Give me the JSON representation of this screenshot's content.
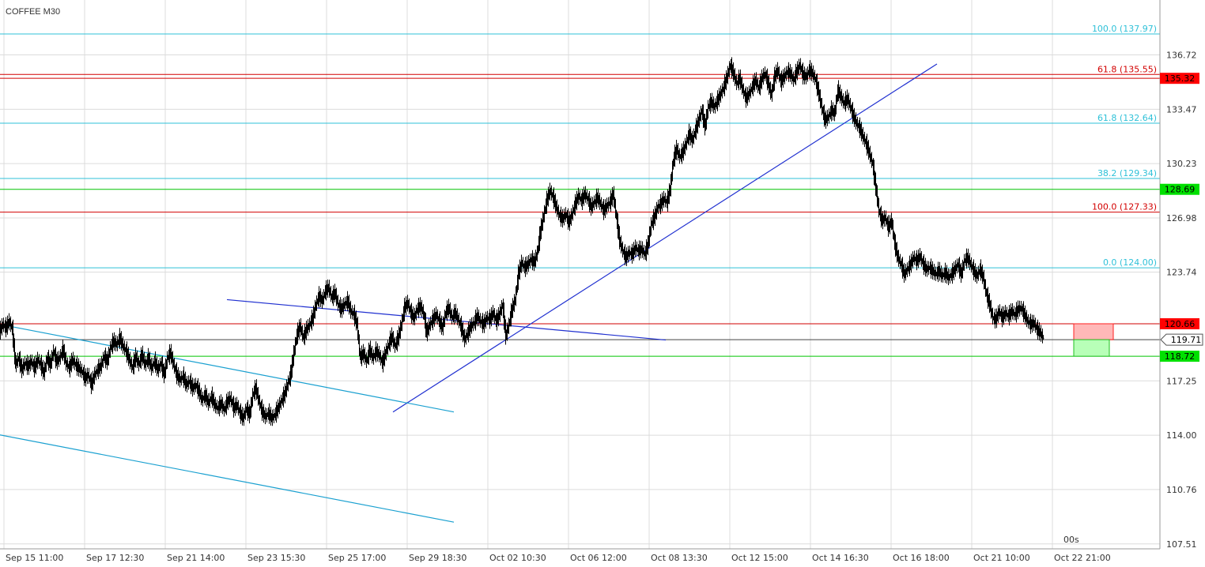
{
  "chart_data": {
    "type": "candlestick",
    "title": "COFFEE M30",
    "countdown": "00s",
    "x_ticks": [
      "Sep 15 11:00",
      "Sep 17 12:30",
      "Sep 21 14:00",
      "Sep 23 15:30",
      "Sep 25 17:00",
      "Sep 29 18:30",
      "Oct 02 10:30",
      "Oct 06 12:00",
      "Oct 08 13:30",
      "Oct 12 15:00",
      "Oct 14 16:30",
      "Oct 16 18:00",
      "Oct 21 10:00",
      "Oct 22 21:00"
    ],
    "y_ticks": [
      107.51,
      110.76,
      114.0,
      117.25,
      119.71,
      123.74,
      126.98,
      130.23,
      133.47,
      136.72
    ],
    "ylim": [
      107.51,
      136.72
    ],
    "current_price": "119.71",
    "price_path": [
      [
        0,
        120.2
      ],
      [
        4,
        120.6
      ],
      [
        8,
        120.4
      ],
      [
        12,
        120.8
      ],
      [
        16,
        120.3
      ],
      [
        20,
        118.2
      ],
      [
        24,
        118.6
      ],
      [
        28,
        117.9
      ],
      [
        32,
        118.3
      ],
      [
        36,
        118.1
      ],
      [
        40,
        118.4
      ],
      [
        44,
        118.0
      ],
      [
        48,
        118.5
      ],
      [
        52,
        118.2
      ],
      [
        56,
        117.7
      ],
      [
        60,
        118.6
      ],
      [
        64,
        118.2
      ],
      [
        68,
        119.0
      ],
      [
        72,
        118.4
      ],
      [
        76,
        118.6
      ],
      [
        80,
        119.1
      ],
      [
        84,
        118.3
      ],
      [
        88,
        118.0
      ],
      [
        92,
        118.5
      ],
      [
        96,
        118.2
      ],
      [
        100,
        118.0
      ],
      [
        104,
        117.8
      ],
      [
        108,
        117.4
      ],
      [
        112,
        117.6
      ],
      [
        116,
        117.0
      ],
      [
        120,
        117.6
      ],
      [
        124,
        117.9
      ],
      [
        128,
        118.1
      ],
      [
        132,
        118.7
      ],
      [
        136,
        118.4
      ],
      [
        140,
        119.2
      ],
      [
        144,
        119.6
      ],
      [
        148,
        119.4
      ],
      [
        152,
        119.8
      ],
      [
        156,
        119.3
      ],
      [
        160,
        119.0
      ],
      [
        164,
        118.5
      ],
      [
        168,
        118.0
      ],
      [
        172,
        118.7
      ],
      [
        176,
        118.2
      ],
      [
        180,
        118.8
      ],
      [
        184,
        118.2
      ],
      [
        188,
        118.6
      ],
      [
        192,
        118.0
      ],
      [
        196,
        118.4
      ],
      [
        200,
        117.9
      ],
      [
        204,
        118.3
      ],
      [
        208,
        117.6
      ],
      [
        212,
        118.6
      ],
      [
        216,
        118.9
      ],
      [
        220,
        118.2
      ],
      [
        224,
        117.6
      ],
      [
        228,
        117.3
      ],
      [
        232,
        117.5
      ],
      [
        236,
        117.0
      ],
      [
        240,
        117.2
      ],
      [
        244,
        116.8
      ],
      [
        248,
        117.0
      ],
      [
        252,
        116.6
      ],
      [
        256,
        116.1
      ],
      [
        260,
        116.4
      ],
      [
        264,
        115.9
      ],
      [
        268,
        116.3
      ],
      [
        272,
        115.8
      ],
      [
        276,
        115.6
      ],
      [
        280,
        115.9
      ],
      [
        284,
        115.5
      ],
      [
        288,
        116.0
      ],
      [
        292,
        116.2
      ],
      [
        296,
        115.6
      ],
      [
        300,
        115.8
      ],
      [
        304,
        115.3
      ],
      [
        308,
        115.0
      ],
      [
        312,
        115.6
      ],
      [
        316,
        115.2
      ],
      [
        320,
        116.4
      ],
      [
        324,
        116.8
      ],
      [
        328,
        116.0
      ],
      [
        332,
        115.4
      ],
      [
        336,
        115.1
      ],
      [
        340,
        115.3
      ],
      [
        344,
        115.0
      ],
      [
        348,
        115.2
      ],
      [
        352,
        115.6
      ],
      [
        356,
        116.0
      ],
      [
        360,
        116.4
      ],
      [
        364,
        117.0
      ],
      [
        368,
        117.6
      ],
      [
        372,
        118.9
      ],
      [
        376,
        120.0
      ],
      [
        380,
        120.5
      ],
      [
        384,
        119.8
      ],
      [
        388,
        120.3
      ],
      [
        392,
        120.6
      ],
      [
        396,
        121.0
      ],
      [
        400,
        121.8
      ],
      [
        404,
        122.3
      ],
      [
        408,
        122.0
      ],
      [
        412,
        122.6
      ],
      [
        416,
        122.8
      ],
      [
        420,
        122.2
      ],
      [
        424,
        122.5
      ],
      [
        428,
        121.8
      ],
      [
        432,
        121.5
      ],
      [
        436,
        121.8
      ],
      [
        440,
        122.0
      ],
      [
        444,
        121.4
      ],
      [
        448,
        121.2
      ],
      [
        452,
        120.6
      ],
      [
        456,
        118.6
      ],
      [
        460,
        118.9
      ],
      [
        464,
        118.4
      ],
      [
        468,
        119.1
      ],
      [
        472,
        118.6
      ],
      [
        476,
        119.0
      ],
      [
        480,
        118.8
      ],
      [
        484,
        118.3
      ],
      [
        488,
        118.9
      ],
      [
        492,
        119.4
      ],
      [
        496,
        119.9
      ],
      [
        500,
        119.3
      ],
      [
        504,
        119.8
      ],
      [
        508,
        120.6
      ],
      [
        512,
        121.6
      ],
      [
        516,
        121.9
      ],
      [
        520,
        121.3
      ],
      [
        524,
        121.0
      ],
      [
        528,
        121.5
      ],
      [
        532,
        121.7
      ],
      [
        536,
        121.3
      ],
      [
        540,
        120.1
      ],
      [
        544,
        120.6
      ],
      [
        548,
        120.9
      ],
      [
        552,
        121.2
      ],
      [
        556,
        120.8
      ],
      [
        560,
        120.4
      ],
      [
        564,
        121.3
      ],
      [
        568,
        121.6
      ],
      [
        572,
        121.0
      ],
      [
        576,
        121.3
      ],
      [
        580,
        120.9
      ],
      [
        584,
        120.4
      ],
      [
        588,
        119.7
      ],
      [
        592,
        120.1
      ],
      [
        596,
        120.5
      ],
      [
        600,
        120.7
      ],
      [
        604,
        121.1
      ],
      [
        608,
        120.8
      ],
      [
        612,
        120.6
      ],
      [
        616,
        121.0
      ],
      [
        620,
        120.9
      ],
      [
        624,
        121.3
      ],
      [
        628,
        120.8
      ],
      [
        632,
        121.2
      ],
      [
        636,
        121.8
      ],
      [
        640,
        119.9
      ],
      [
        644,
        120.6
      ],
      [
        648,
        121.5
      ],
      [
        652,
        122.1
      ],
      [
        656,
        123.6
      ],
      [
        660,
        124.3
      ],
      [
        664,
        124.0
      ],
      [
        668,
        124.2
      ],
      [
        672,
        124.5
      ],
      [
        676,
        124.3
      ],
      [
        680,
        124.9
      ],
      [
        684,
        126.2
      ],
      [
        688,
        127.1
      ],
      [
        692,
        128.0
      ],
      [
        696,
        128.6
      ],
      [
        700,
        128.2
      ],
      [
        704,
        127.6
      ],
      [
        708,
        127.1
      ],
      [
        712,
        126.9
      ],
      [
        716,
        127.2
      ],
      [
        720,
        126.7
      ],
      [
        724,
        127.2
      ],
      [
        728,
        127.8
      ],
      [
        732,
        128.3
      ],
      [
        736,
        128.0
      ],
      [
        740,
        128.4
      ],
      [
        744,
        128.1
      ],
      [
        748,
        127.6
      ],
      [
        752,
        127.9
      ],
      [
        756,
        128.2
      ],
      [
        760,
        127.8
      ],
      [
        764,
        127.4
      ],
      [
        768,
        127.7
      ],
      [
        772,
        127.9
      ],
      [
        776,
        128.4
      ],
      [
        780,
        127.0
      ],
      [
        784,
        125.6
      ],
      [
        788,
        125.0
      ],
      [
        792,
        124.6
      ],
      [
        796,
        124.9
      ],
      [
        800,
        124.8
      ],
      [
        804,
        125.2
      ],
      [
        808,
        125.0
      ],
      [
        812,
        125.1
      ],
      [
        816,
        124.8
      ],
      [
        820,
        125.4
      ],
      [
        824,
        126.6
      ],
      [
        828,
        127.0
      ],
      [
        832,
        127.6
      ],
      [
        836,
        127.8
      ],
      [
        840,
        128.1
      ],
      [
        844,
        127.9
      ],
      [
        848,
        128.7
      ],
      [
        852,
        130.4
      ],
      [
        856,
        131.1
      ],
      [
        860,
        130.6
      ],
      [
        864,
        130.9
      ],
      [
        868,
        131.4
      ],
      [
        872,
        132.0
      ],
      [
        876,
        131.6
      ],
      [
        880,
        132.2
      ],
      [
        884,
        132.8
      ],
      [
        888,
        133.4
      ],
      [
        892,
        132.4
      ],
      [
        896,
        133.6
      ],
      [
        900,
        133.9
      ],
      [
        904,
        133.6
      ],
      [
        908,
        134.0
      ],
      [
        912,
        134.4
      ],
      [
        916,
        134.8
      ],
      [
        920,
        135.4
      ],
      [
        924,
        136.1
      ],
      [
        928,
        135.6
      ],
      [
        932,
        135.0
      ],
      [
        936,
        135.3
      ],
      [
        940,
        134.6
      ],
      [
        944,
        134.1
      ],
      [
        948,
        134.4
      ],
      [
        952,
        134.8
      ],
      [
        956,
        135.2
      ],
      [
        960,
        134.7
      ],
      [
        964,
        135.3
      ],
      [
        968,
        135.6
      ],
      [
        972,
        135.0
      ],
      [
        976,
        134.3
      ],
      [
        980,
        135.4
      ],
      [
        984,
        135.8
      ],
      [
        988,
        135.1
      ],
      [
        992,
        135.4
      ],
      [
        996,
        135.7
      ],
      [
        1000,
        135.6
      ],
      [
        1004,
        135.2
      ],
      [
        1008,
        135.7
      ],
      [
        1012,
        136.1
      ],
      [
        1016,
        135.5
      ],
      [
        1020,
        135.4
      ],
      [
        1024,
        135.8
      ],
      [
        1028,
        135.6
      ],
      [
        1032,
        135.2
      ],
      [
        1036,
        134.4
      ],
      [
        1040,
        133.5
      ],
      [
        1044,
        132.8
      ],
      [
        1048,
        133.0
      ],
      [
        1052,
        133.4
      ],
      [
        1056,
        133.2
      ],
      [
        1060,
        134.6
      ],
      [
        1064,
        134.2
      ],
      [
        1068,
        133.8
      ],
      [
        1072,
        134.1
      ],
      [
        1076,
        133.6
      ],
      [
        1080,
        133.0
      ],
      [
        1084,
        132.6
      ],
      [
        1088,
        132.3
      ],
      [
        1092,
        131.8
      ],
      [
        1096,
        131.4
      ],
      [
        1100,
        130.8
      ],
      [
        1104,
        130.2
      ],
      [
        1108,
        128.8
      ],
      [
        1112,
        127.4
      ],
      [
        1116,
        126.8
      ],
      [
        1120,
        127.0
      ],
      [
        1124,
        126.4
      ],
      [
        1128,
        126.8
      ],
      [
        1132,
        125.4
      ],
      [
        1136,
        124.6
      ],
      [
        1140,
        124.2
      ],
      [
        1144,
        123.6
      ],
      [
        1148,
        123.9
      ],
      [
        1152,
        124.2
      ],
      [
        1156,
        124.6
      ],
      [
        1160,
        124.4
      ],
      [
        1164,
        124.7
      ],
      [
        1168,
        124.2
      ],
      [
        1172,
        123.9
      ],
      [
        1176,
        124.0
      ],
      [
        1180,
        123.8
      ],
      [
        1184,
        123.6
      ],
      [
        1188,
        123.8
      ],
      [
        1192,
        123.5
      ],
      [
        1196,
        123.7
      ],
      [
        1200,
        123.4
      ],
      [
        1204,
        123.6
      ],
      [
        1208,
        123.9
      ],
      [
        1212,
        124.2
      ],
      [
        1216,
        123.6
      ],
      [
        1220,
        124.4
      ],
      [
        1224,
        124.6
      ],
      [
        1228,
        124.2
      ],
      [
        1232,
        123.8
      ],
      [
        1236,
        123.5
      ],
      [
        1240,
        123.9
      ],
      [
        1244,
        123.4
      ],
      [
        1248,
        122.4
      ],
      [
        1252,
        121.8
      ],
      [
        1256,
        121.0
      ],
      [
        1260,
        120.9
      ],
      [
        1264,
        121.4
      ],
      [
        1268,
        121.0
      ],
      [
        1272,
        121.3
      ],
      [
        1276,
        121.1
      ],
      [
        1280,
        121.4
      ],
      [
        1284,
        121.2
      ],
      [
        1288,
        121.5
      ],
      [
        1292,
        121.6
      ],
      [
        1296,
        121.2
      ],
      [
        1300,
        120.8
      ],
      [
        1304,
        120.6
      ],
      [
        1308,
        120.7
      ],
      [
        1312,
        120.3
      ],
      [
        1316,
        120.1
      ],
      [
        1320,
        119.8
      ]
    ],
    "hlines": [
      {
        "y": 137.97,
        "color": "#2fc1d8",
        "label": "100.0 (137.97)"
      },
      {
        "y": 135.55,
        "color": "#d20000",
        "label": "61.8 (135.55)"
      },
      {
        "y": 135.32,
        "color": "#d20000",
        "label": "",
        "badge": "135.32",
        "badge_bg": "#ff0000"
      },
      {
        "y": 132.64,
        "color": "#2fc1d8",
        "label": "61.8 (132.64)"
      },
      {
        "y": 129.34,
        "color": "#2fc1d8",
        "label": "38.2 (129.34)"
      },
      {
        "y": 128.69,
        "color": "#00c400",
        "label": "",
        "badge": "128.69",
        "badge_bg": "#00e000"
      },
      {
        "y": 127.33,
        "color": "#d20000",
        "label": "100.0 (127.33)"
      },
      {
        "y": 124.0,
        "color": "#2fc1d8",
        "label": "0.0 (124.00)"
      },
      {
        "y": 120.66,
        "color": "#d20000",
        "label": "",
        "badge": "120.66",
        "badge_bg": "#ff0000"
      },
      {
        "y": 119.71,
        "color": "#444444",
        "label": ""
      },
      {
        "y": 118.72,
        "color": "#00c400",
        "label": "",
        "badge": "118.72",
        "badge_bg": "#00e000"
      }
    ],
    "trendlines": [
      {
        "x1": 287,
        "y1": 122.1,
        "x2": 842,
        "y2": 119.69,
        "color": "#2030d0"
      },
      {
        "x1": 497,
        "y1": 115.39,
        "x2": 1185,
        "y2": 136.18,
        "color": "#2030d0"
      },
      {
        "x1": 0,
        "y1": 120.62,
        "x2": 574,
        "y2": 115.39,
        "color": "#1aa0d0"
      },
      {
        "x1": 0,
        "y1": 114.02,
        "x2": 574,
        "y2": 108.81,
        "color": "#1aa0d0"
      }
    ],
    "zones": [
      {
        "x": 1358,
        "y_top": 120.66,
        "y_bottom": 119.71,
        "width": 50,
        "fill": "#ffb8b8",
        "stroke": "#ff2020"
      },
      {
        "x": 1358,
        "y_top": 119.71,
        "y_bottom": 118.72,
        "width": 45,
        "fill": "#b8ffb8",
        "stroke": "#20c020"
      }
    ]
  }
}
